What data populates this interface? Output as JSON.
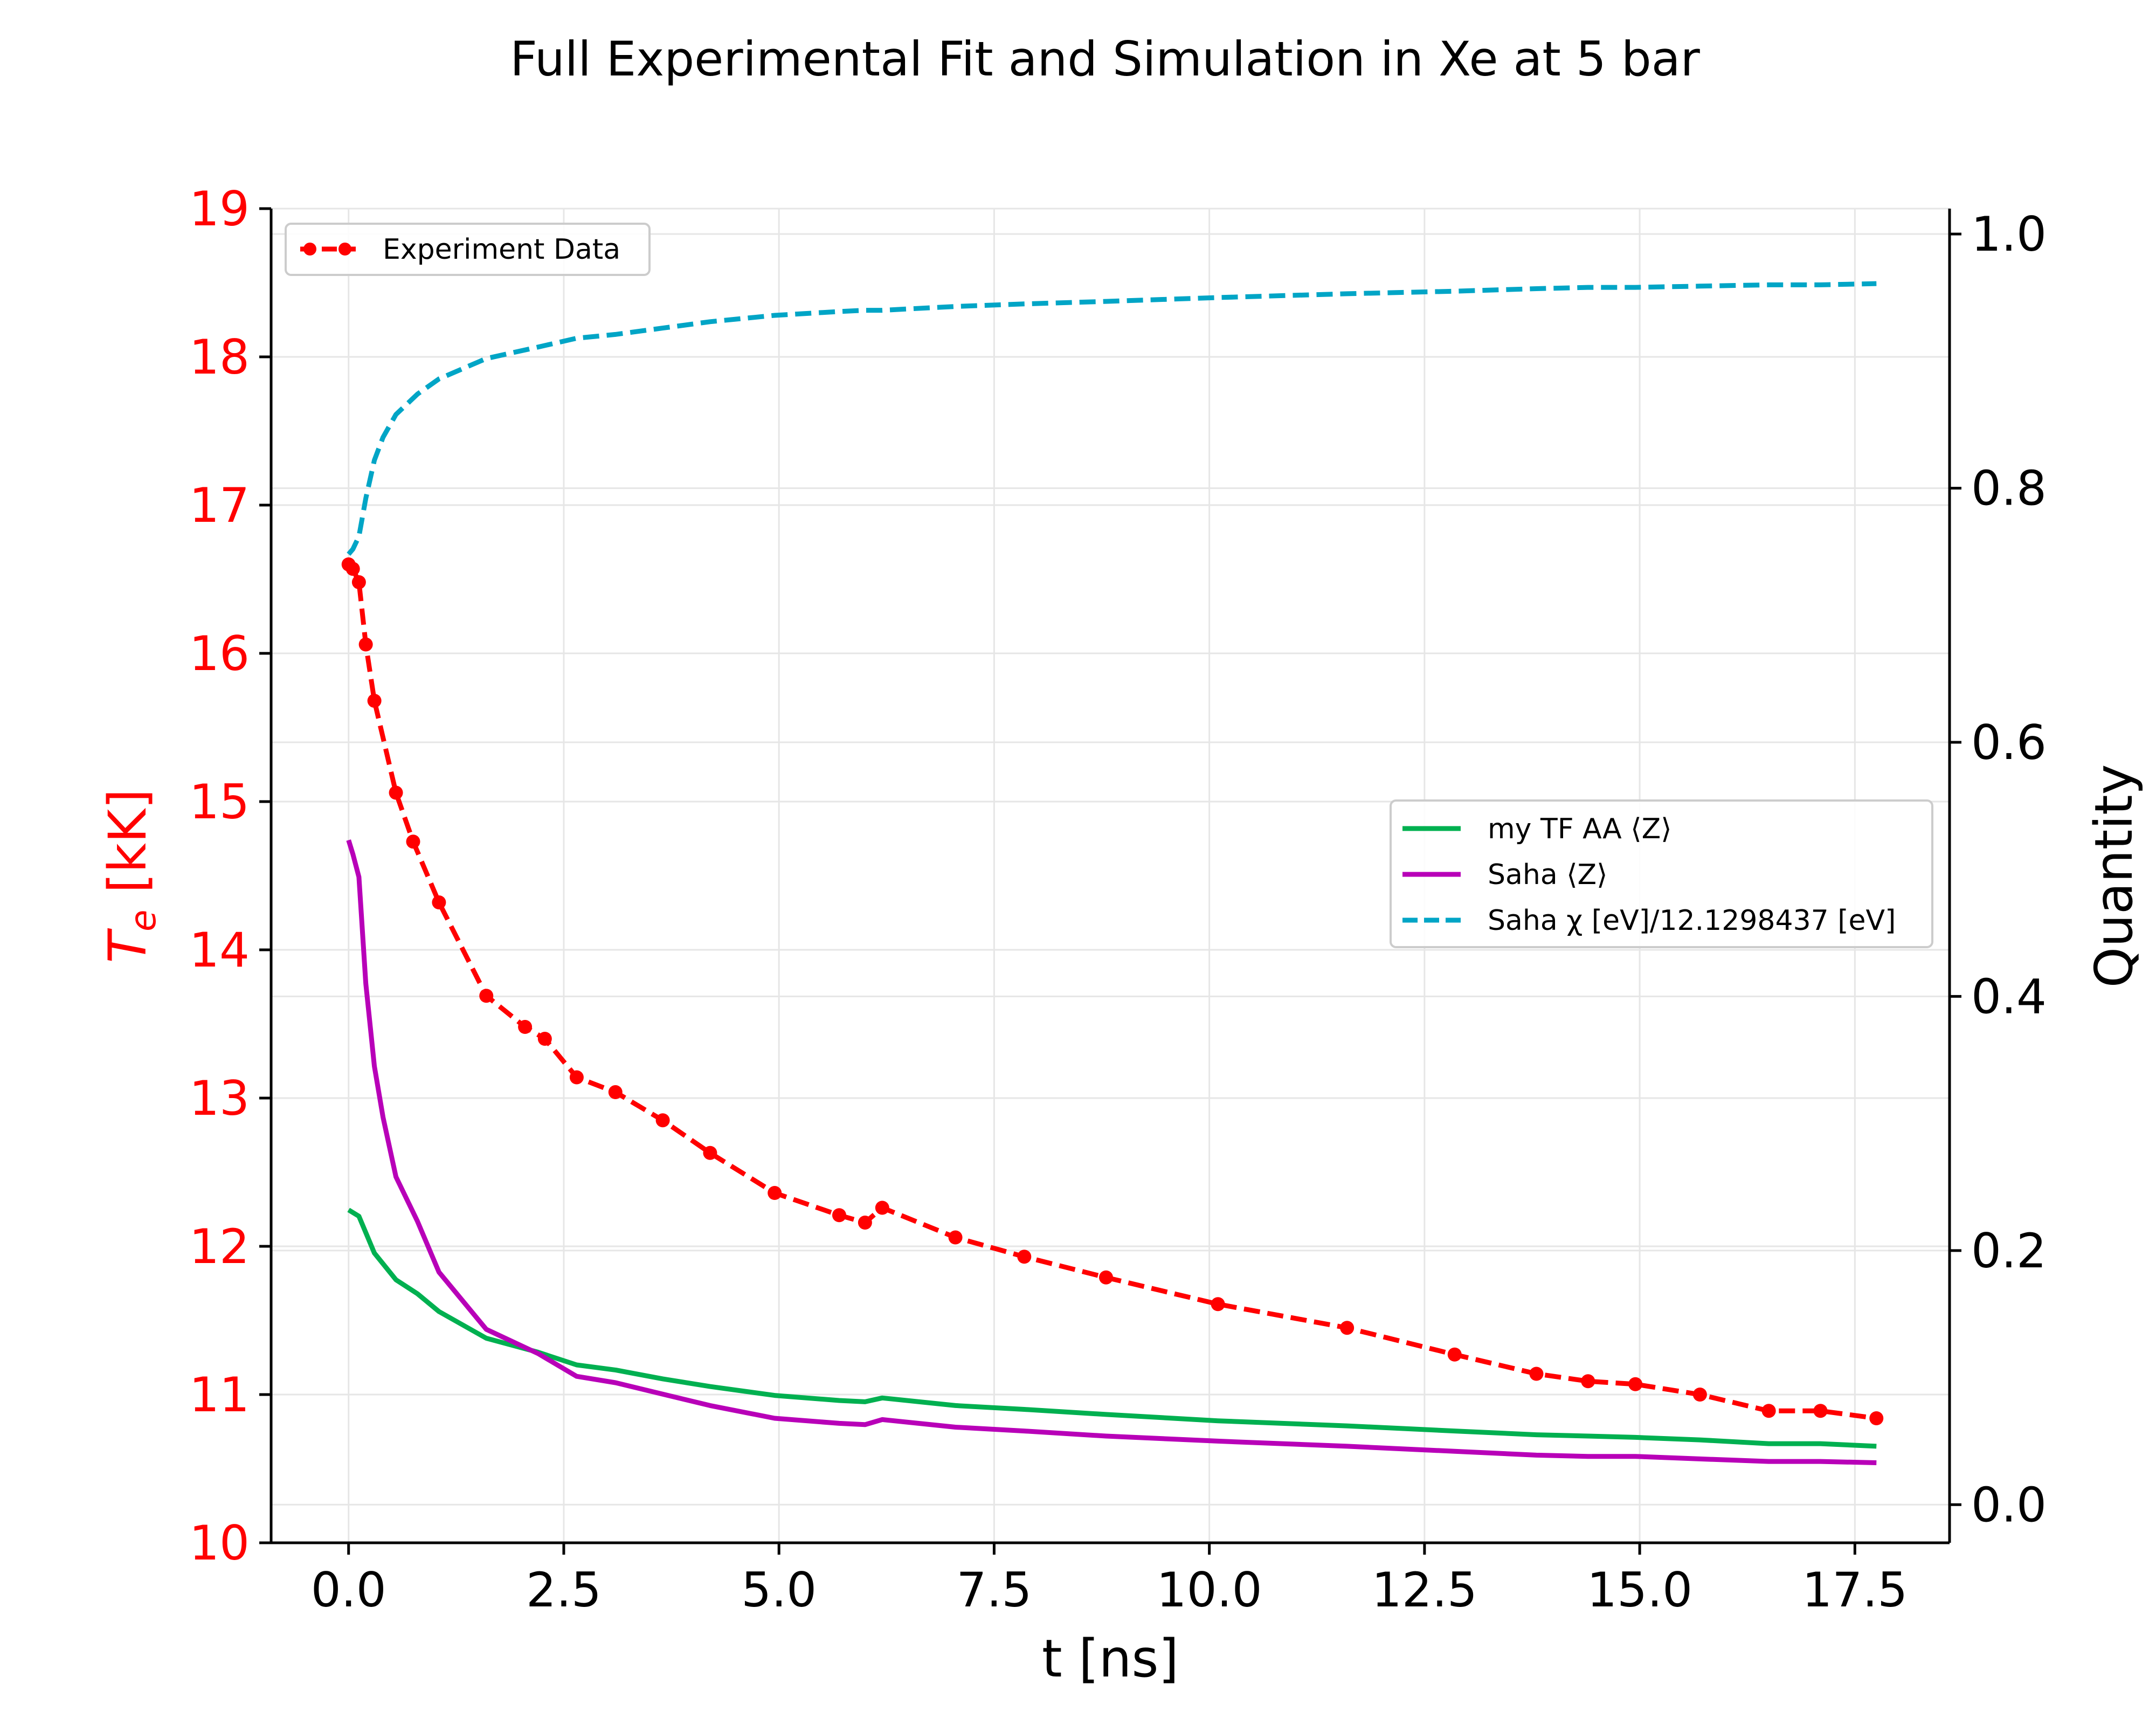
{
  "chart_data": {
    "type": "line",
    "title": "Full Experimental Fit and Simulation in Xe at 5 bar",
    "xlabel": "t [ns]",
    "ylabel_left": "T_e [kK]",
    "ylabel_left_base": "T",
    "ylabel_left_sub": "e",
    "ylabel_left_unit": " [kK]",
    "ylabel_right": "Quantity",
    "xlim": [
      -0.9,
      18.6
    ],
    "ylim_left": [
      10,
      19
    ],
    "ylim_right": [
      -0.03,
      1.02
    ],
    "x_ticks": [
      "0.0",
      "2.5",
      "5.0",
      "7.5",
      "10.0",
      "12.5",
      "15.0",
      "17.5"
    ],
    "x_tick_values": [
      0,
      2.5,
      5,
      7.5,
      10,
      12.5,
      15,
      17.5
    ],
    "y_left_ticks": [
      "10",
      "11",
      "12",
      "13",
      "14",
      "15",
      "16",
      "17",
      "18",
      "19"
    ],
    "y_left_tick_values": [
      10,
      11,
      12,
      13,
      14,
      15,
      16,
      17,
      18,
      19
    ],
    "y_right_ticks": [
      "0.0",
      "0.2",
      "0.4",
      "0.6",
      "0.8",
      "1.0"
    ],
    "y_right_tick_values": [
      0,
      0.2,
      0.4,
      0.6,
      0.8,
      1.0
    ],
    "grid": true,
    "legends": [
      {
        "placement": "upper-left",
        "entries": [
          "Experiment Data"
        ]
      },
      {
        "placement": "center-right",
        "entries": [
          "my TF AA ⟨Z⟩",
          "Saha ⟨Z⟩",
          "Saha χ [eV]/12.1298437 [eV]"
        ]
      }
    ],
    "series": [
      {
        "name": "Experiment Data",
        "axis": "left",
        "color": "#ff0000",
        "style": "dashed-markers",
        "x": [
          0.0,
          0.05,
          0.12,
          0.2,
          0.3,
          0.55,
          0.75,
          1.05,
          1.6,
          2.05,
          2.28,
          2.65,
          3.1,
          3.65,
          4.2,
          4.95,
          5.7,
          6.0,
          6.2,
          7.05,
          7.85,
          8.8,
          10.1,
          11.6,
          12.85,
          13.8,
          14.4,
          14.95,
          15.7,
          16.5,
          17.1,
          17.75
        ],
        "y": [
          16.6,
          16.57,
          16.48,
          16.06,
          15.68,
          15.06,
          14.73,
          14.32,
          13.69,
          13.48,
          13.4,
          13.14,
          13.04,
          12.85,
          12.63,
          12.36,
          12.21,
          12.16,
          12.26,
          12.06,
          11.93,
          11.79,
          11.61,
          11.45,
          11.27,
          11.14,
          11.09,
          11.07,
          11.0,
          10.89,
          10.89,
          10.84
        ]
      },
      {
        "name": "my TF AA ⟨Z⟩",
        "axis": "right",
        "color": "#00b050",
        "style": "solid",
        "x": [
          0.0,
          0.12,
          0.3,
          0.55,
          0.8,
          1.05,
          1.6,
          2.2,
          2.65,
          3.1,
          3.65,
          4.2,
          4.95,
          5.7,
          6.0,
          6.2,
          7.05,
          7.85,
          8.8,
          10.1,
          11.6,
          12.85,
          13.8,
          14.4,
          14.95,
          15.7,
          16.5,
          17.1,
          17.75
        ],
        "y": [
          0.232,
          0.227,
          0.198,
          0.177,
          0.166,
          0.152,
          0.131,
          0.12,
          0.11,
          0.106,
          0.099,
          0.093,
          0.086,
          0.082,
          0.081,
          0.084,
          0.078,
          0.075,
          0.071,
          0.066,
          0.062,
          0.058,
          0.055,
          0.054,
          0.053,
          0.051,
          0.048,
          0.048,
          0.046
        ]
      },
      {
        "name": "Saha ⟨Z⟩",
        "axis": "right",
        "color": "#b800b8",
        "style": "solid",
        "x": [
          0.0,
          0.05,
          0.12,
          0.2,
          0.3,
          0.4,
          0.55,
          0.8,
          1.05,
          1.6,
          2.2,
          2.65,
          3.1,
          3.65,
          4.2,
          4.95,
          5.7,
          6.0,
          6.2,
          7.05,
          7.85,
          8.8,
          10.1,
          11.6,
          12.85,
          13.8,
          14.4,
          14.95,
          15.7,
          16.5,
          17.1,
          17.75
        ],
        "y": [
          0.523,
          0.512,
          0.494,
          0.41,
          0.345,
          0.305,
          0.258,
          0.223,
          0.183,
          0.138,
          0.119,
          0.101,
          0.096,
          0.087,
          0.078,
          0.068,
          0.064,
          0.063,
          0.067,
          0.061,
          0.058,
          0.054,
          0.05,
          0.046,
          0.042,
          0.039,
          0.038,
          0.038,
          0.036,
          0.034,
          0.034,
          0.033
        ]
      },
      {
        "name": "Saha χ [eV]/12.1298437 [eV]",
        "axis": "right",
        "color": "#00a5c6",
        "style": "dashed",
        "x": [
          0.0,
          0.05,
          0.12,
          0.2,
          0.3,
          0.4,
          0.55,
          0.8,
          1.05,
          1.6,
          2.2,
          2.65,
          3.1,
          3.65,
          4.2,
          4.95,
          5.7,
          6.0,
          6.2,
          7.05,
          7.85,
          8.8,
          10.1,
          11.6,
          12.85,
          13.8,
          14.4,
          14.95,
          15.7,
          16.5,
          17.1,
          17.75
        ],
        "y": [
          0.748,
          0.752,
          0.762,
          0.792,
          0.822,
          0.84,
          0.858,
          0.874,
          0.886,
          0.902,
          0.911,
          0.918,
          0.921,
          0.926,
          0.931,
          0.936,
          0.939,
          0.94,
          0.94,
          0.943,
          0.945,
          0.947,
          0.95,
          0.953,
          0.955,
          0.957,
          0.958,
          0.958,
          0.959,
          0.96,
          0.96,
          0.961
        ]
      }
    ]
  }
}
